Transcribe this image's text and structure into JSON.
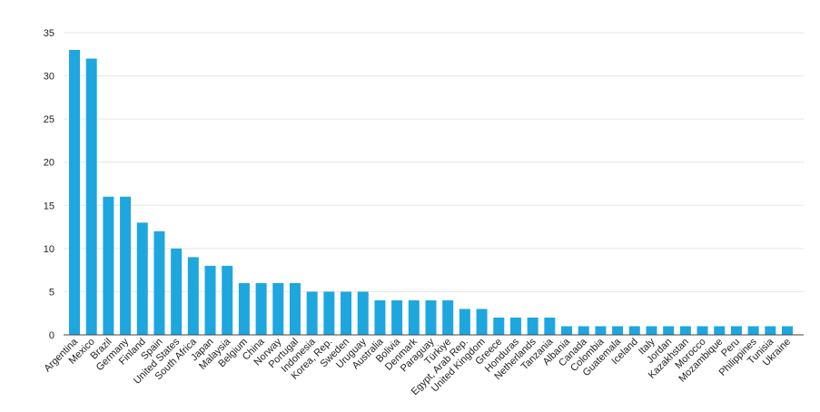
{
  "chart_data": {
    "type": "bar",
    "title": "",
    "xlabel": "",
    "ylabel": "",
    "ylim": [
      0,
      35
    ],
    "yticks": [
      0,
      5,
      10,
      15,
      20,
      25,
      30,
      35
    ],
    "grid": "horizontal",
    "legend": "none",
    "bar_color": "#1ea7df",
    "categories": [
      "Argentina",
      "Mexico",
      "Brazil",
      "Germany",
      "Finland",
      "Spain",
      "United States",
      "South Africa",
      "Japan",
      "Malaysia",
      "Belgium",
      "China",
      "Norway",
      "Portugal",
      "Indonesia",
      "Korea, Rep.",
      "Sweden",
      "Uruguay",
      "Australia",
      "Bolivia",
      "Denmark",
      "Paraguay",
      "Türkiye",
      "Egypt, Arab Rep.",
      "United Kingdom",
      "Greece",
      "Honduras",
      "Netherlands",
      "Tanzania",
      "Albania",
      "Canada",
      "Colombia",
      "Guatemala",
      "Iceland",
      "Italy",
      "Jordan",
      "Kazakhstan",
      "Morocco",
      "Mozambique",
      "Peru",
      "Philippines",
      "Tunisia",
      "Ukraine"
    ],
    "values": [
      33,
      32,
      16,
      16,
      13,
      12,
      10,
      9,
      8,
      8,
      6,
      6,
      6,
      6,
      5,
      5,
      5,
      5,
      4,
      4,
      4,
      4,
      4,
      3,
      3,
      2,
      2,
      2,
      2,
      1,
      1,
      1,
      1,
      1,
      1,
      1,
      1,
      1,
      1,
      1,
      1,
      1,
      1
    ]
  }
}
